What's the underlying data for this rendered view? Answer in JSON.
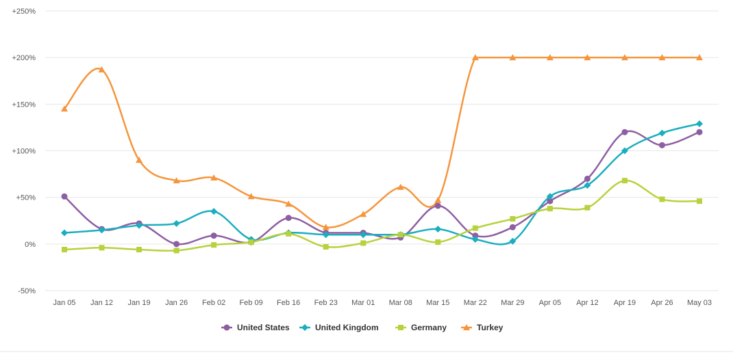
{
  "chart_data": {
    "type": "line",
    "title": "",
    "xlabel": "",
    "ylabel": "",
    "categories": [
      "Jan 05",
      "Jan 12",
      "Jan 19",
      "Jan 26",
      "Feb 02",
      "Feb 09",
      "Feb 16",
      "Feb 23",
      "Mar 01",
      "Mar 08",
      "Mar 15",
      "Mar 22",
      "Mar 29",
      "Apr 05",
      "Apr 12",
      "Apr 19",
      "Apr 26",
      "May 03"
    ],
    "y_ticks": [
      {
        "value": -50,
        "label": "-50%"
      },
      {
        "value": 0,
        "label": "0%"
      },
      {
        "value": 50,
        "label": "+50%"
      },
      {
        "value": 100,
        "label": "+100%"
      },
      {
        "value": 150,
        "label": "+150%"
      },
      {
        "value": 200,
        "label": "+200%"
      },
      {
        "value": 250,
        "label": "+250%"
      }
    ],
    "ylim": [
      -50,
      250
    ],
    "grid": true,
    "legend_position": "bottom",
    "series": [
      {
        "name": "United States",
        "color": "#8e5ea2",
        "marker": "circle",
        "values": [
          51,
          16,
          22,
          0,
          9,
          2,
          28,
          12,
          12,
          7,
          41,
          9,
          18,
          46,
          70,
          120,
          106,
          120
        ]
      },
      {
        "name": "United Kingdom",
        "color": "#1aaebf",
        "marker": "diamond",
        "values": [
          12,
          15,
          20,
          22,
          35,
          5,
          12,
          10,
          10,
          10,
          16,
          5,
          3,
          51,
          63,
          100,
          119,
          129
        ]
      },
      {
        "name": "Germany",
        "color": "#b7d23c",
        "marker": "square",
        "values": [
          -6,
          -4,
          -6,
          -7,
          -1,
          2,
          11,
          -3,
          1,
          10,
          2,
          17,
          27,
          38,
          39,
          68,
          48,
          46
        ]
      },
      {
        "name": "Turkey",
        "color": "#f5953c",
        "marker": "triangle",
        "values": [
          145,
          187,
          90,
          68,
          71,
          51,
          43,
          18,
          32,
          61,
          47,
          200,
          200,
          200,
          200,
          200,
          200,
          200
        ]
      }
    ]
  }
}
